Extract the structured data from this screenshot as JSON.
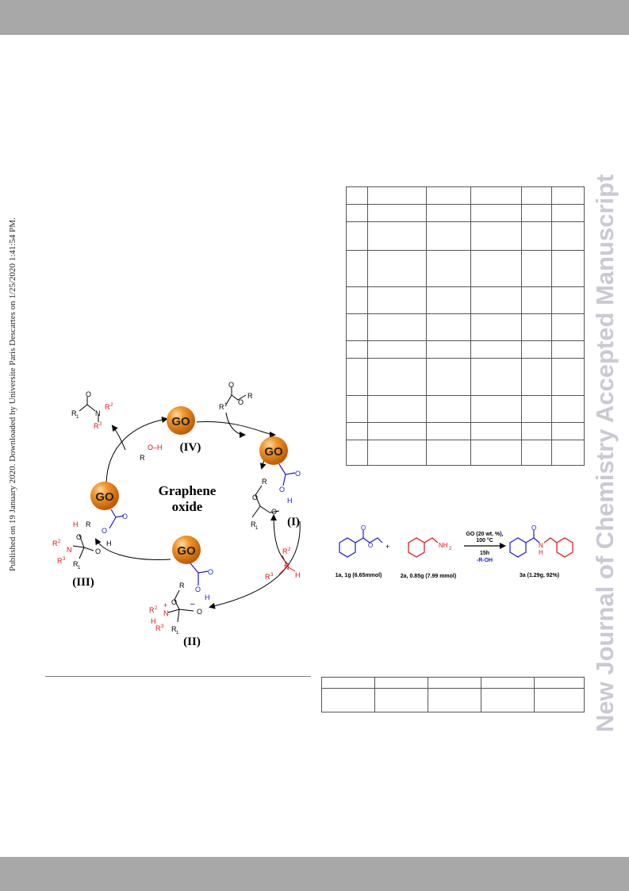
{
  "side_note": "Published on 19 January 2020. Downloaded by Universite Paris Descartes on 1/25/2020 1:41:54 PM.",
  "watermark": "New Journal of Chemistry Accepted Manuscript",
  "cycle": {
    "center_title_line1": "Graphene",
    "center_title_line2": "oxide",
    "go_label": "GO",
    "stage_I": "(I)",
    "stage_II": "(II)",
    "stage_III": "(III)",
    "stage_IV": "(IV)",
    "labels": {
      "R": "R",
      "R1": "R",
      "R1_sub": "1",
      "R2": "R",
      "R2_sup": "2",
      "R3": "R",
      "R3_sup": "3",
      "O": "O",
      "N": "N",
      "H": "H",
      "OH": "O–H",
      "plus": "+",
      "minus": "–"
    }
  },
  "reaction": {
    "conditions_line1": "GO (20 wt. %),",
    "conditions_line2": "100 °C",
    "conditions_line3": "15h",
    "conditions_line4": "-R-OH",
    "reactant1_label": "1a, 1g (6.65mmol)",
    "reactant2_label": "2a, 0.85g (7.99 mmol)",
    "product_label": "3a (1.29g, 92%)",
    "plus": "+",
    "nh2": "NH",
    "nh2_sub": "2",
    "o": "O",
    "n": "N",
    "h": "H"
  },
  "colors": {
    "blue": "#1a1ad6",
    "red": "#e01010",
    "go_orange": "#e87b10",
    "watermark": "#c9cad2",
    "bar": "#a8a8a8"
  }
}
